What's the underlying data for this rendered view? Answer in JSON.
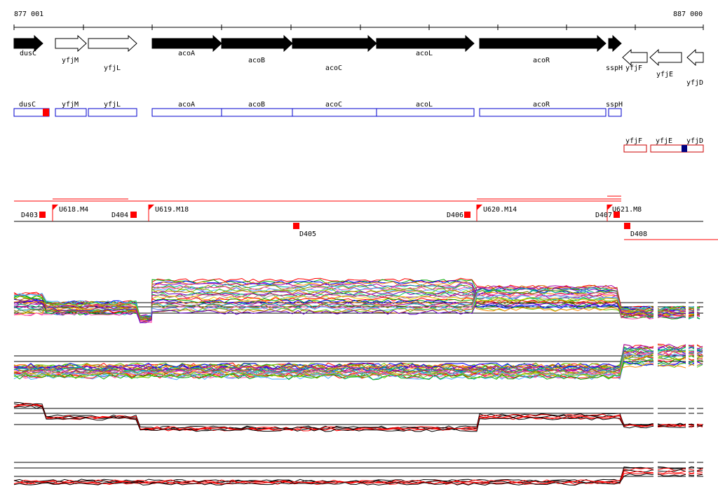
{
  "coords": {
    "start_label": "877 001",
    "end_label": "887 000"
  },
  "genes_top": [
    {
      "name": "dusC",
      "strand": "+",
      "filled": true
    },
    {
      "name": "yfjM",
      "strand": "+",
      "filled": false
    },
    {
      "name": "yfjL",
      "strand": "+",
      "filled": false
    },
    {
      "name": "acoA",
      "strand": "+",
      "filled": true
    },
    {
      "name": "acoB",
      "strand": "+",
      "filled": true
    },
    {
      "name": "acoC",
      "strand": "+",
      "filled": true
    },
    {
      "name": "acoL",
      "strand": "+",
      "filled": true
    },
    {
      "name": "acoR",
      "strand": "+",
      "filled": true
    },
    {
      "name": "sspH",
      "strand": "+",
      "filled": true
    },
    {
      "name": "yfjF",
      "strand": "-",
      "filled": false
    },
    {
      "name": "yfjE",
      "strand": "-",
      "filled": false
    },
    {
      "name": "yfjD",
      "strand": "-",
      "filled": false
    }
  ],
  "boxes_plus": [
    "dusC",
    "yfjM",
    "yfjL",
    "acoA",
    "acoB",
    "acoC",
    "acoL",
    "acoR",
    "sspH"
  ],
  "boxes_minus": [
    "yfjF",
    "yfjE",
    "yfjD"
  ],
  "upstream_markers": [
    "U618.M4",
    "U619.M18",
    "U620.M14",
    "U621.M8"
  ],
  "downstream_markers": [
    "D403",
    "D404",
    "D405",
    "D406",
    "D407",
    "D408"
  ],
  "colors": {
    "gene_fill": "#000000",
    "box_plus": "#0000cc",
    "box_minus": "#cc0000",
    "marker": "#ff0000",
    "panel_black": "#000000",
    "panel_red": "#ff0000"
  },
  "panels": [
    {
      "id": "panel-1",
      "description_hidden": ""
    },
    {
      "id": "panel-2"
    },
    {
      "id": "panel-3"
    },
    {
      "id": "panel-4"
    }
  ]
}
